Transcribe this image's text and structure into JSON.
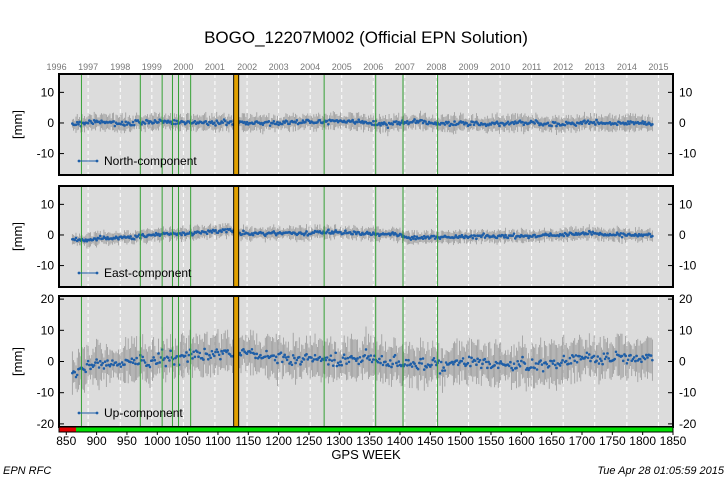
{
  "chart_data": {
    "type": "scatter",
    "title": "BOGO_12207M002 (Official EPN Solution)",
    "xlabel": "GPS WEEK",
    "x_range": [
      838,
      1850
    ],
    "x_ticks": [
      850,
      900,
      950,
      1000,
      1050,
      1100,
      1150,
      1200,
      1250,
      1300,
      1350,
      1400,
      1450,
      1500,
      1550,
      1600,
      1650,
      1700,
      1750,
      1800,
      1850
    ],
    "year_ticks": [
      {
        "label": "1996",
        "week": 834
      },
      {
        "label": "1997",
        "week": 886
      },
      {
        "label": "1998",
        "week": 939
      },
      {
        "label": "1999",
        "week": 991
      },
      {
        "label": "2000",
        "week": 1043
      },
      {
        "label": "2001",
        "week": 1095
      },
      {
        "label": "2002",
        "week": 1148
      },
      {
        "label": "2003",
        "week": 1200
      },
      {
        "label": "2004",
        "week": 1252
      },
      {
        "label": "2005",
        "week": 1304
      },
      {
        "label": "2006",
        "week": 1356
      },
      {
        "label": "2007",
        "week": 1408
      },
      {
        "label": "2008",
        "week": 1460
      },
      {
        "label": "2009",
        "week": 1513
      },
      {
        "label": "2010",
        "week": 1565
      },
      {
        "label": "2011",
        "week": 1617
      },
      {
        "label": "2012",
        "week": 1669
      },
      {
        "label": "2013",
        "week": 1721
      },
      {
        "label": "2014",
        "week": 1774
      },
      {
        "label": "2015",
        "week": 1826
      }
    ],
    "vertical_event_lines_weeks": [
      875,
      972,
      1008,
      1025,
      1035,
      1055,
      1275,
      1360,
      1405,
      1462
    ],
    "discontinuity_week": 1130,
    "data_weeks": [
      860,
      1817
    ],
    "panels": [
      {
        "ylabel": "[mm]",
        "legend": "North-component",
        "ylim": [
          -17,
          16
        ],
        "yticks": [
          -10,
          0,
          10
        ],
        "noise_sd": 1.1,
        "error_half": 2.3,
        "key_points": [
          [
            860,
            -0.6
          ],
          [
            900,
            0.4
          ],
          [
            960,
            -0.2
          ],
          [
            1000,
            0.5
          ],
          [
            1050,
            0.2
          ],
          [
            1100,
            0.0
          ],
          [
            1150,
            0.1
          ],
          [
            1200,
            0.0
          ],
          [
            1260,
            0.3
          ],
          [
            1300,
            0.8
          ],
          [
            1340,
            0.2
          ],
          [
            1380,
            -0.4
          ],
          [
            1420,
            0.5
          ],
          [
            1460,
            0.0
          ],
          [
            1500,
            -0.2
          ],
          [
            1560,
            -0.4
          ],
          [
            1600,
            0.2
          ],
          [
            1650,
            -0.3
          ],
          [
            1700,
            -0.1
          ],
          [
            1750,
            0.0
          ],
          [
            1800,
            0.2
          ],
          [
            1817,
            -0.9
          ]
        ]
      },
      {
        "ylabel": "[mm]",
        "legend": "East-component",
        "ylim": [
          -17,
          16
        ],
        "yticks": [
          -10,
          0,
          10
        ],
        "noise_sd": 0.9,
        "error_half": 1.8,
        "key_points": [
          [
            860,
            -1.3
          ],
          [
            880,
            -1.9
          ],
          [
            900,
            -1.2
          ],
          [
            960,
            -0.6
          ],
          [
            1000,
            0.0
          ],
          [
            1060,
            0.7
          ],
          [
            1120,
            1.5
          ],
          [
            1135,
            0.3
          ],
          [
            1200,
            0.6
          ],
          [
            1260,
            0.8
          ],
          [
            1300,
            0.9
          ],
          [
            1350,
            0.5
          ],
          [
            1400,
            0.3
          ],
          [
            1410,
            -0.9
          ],
          [
            1460,
            -0.6
          ],
          [
            1500,
            -0.7
          ],
          [
            1550,
            -0.4
          ],
          [
            1600,
            -0.4
          ],
          [
            1650,
            -0.1
          ],
          [
            1700,
            0.5
          ],
          [
            1750,
            0.2
          ],
          [
            1817,
            -0.1
          ]
        ]
      },
      {
        "ylabel": "[mm]",
        "legend": "Up-component",
        "ylim": [
          -21,
          21
        ],
        "yticks": [
          -20,
          -10,
          0,
          10,
          20
        ],
        "noise_sd": 2.8,
        "error_half": 5.5,
        "key_points": [
          [
            860,
            -3.0
          ],
          [
            900,
            -1.0
          ],
          [
            950,
            0.0
          ],
          [
            1000,
            1.0
          ],
          [
            1050,
            2.0
          ],
          [
            1100,
            2.5
          ],
          [
            1130,
            3.0
          ],
          [
            1200,
            1.0
          ],
          [
            1300,
            0.5
          ],
          [
            1350,
            1.5
          ],
          [
            1400,
            -1.0
          ],
          [
            1450,
            -1.5
          ],
          [
            1500,
            0.0
          ],
          [
            1550,
            -0.5
          ],
          [
            1600,
            -1.5
          ],
          [
            1650,
            -0.5
          ],
          [
            1700,
            1.5
          ],
          [
            1750,
            1.0
          ],
          [
            1817,
            1.5
          ]
        ]
      }
    ],
    "colors": {
      "points": "#1f5fa8",
      "error_bars": "#9a9a9a",
      "event_lines": "#35a035",
      "discontinuity_line": "#e0a000",
      "panel_background": "#dcdcdc",
      "bottom_bar_green": "#00e000",
      "bottom_bar_red": "#e00000"
    }
  },
  "bottom_bar": {
    "red_until_week": 866
  },
  "footer": {
    "left": "EPN RFC",
    "right": "Tue Apr 28 01:05:59 2015"
  }
}
